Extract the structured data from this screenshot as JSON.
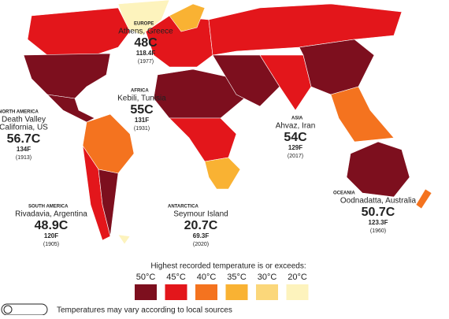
{
  "regions": [
    {
      "continent": "EUROPE",
      "place": [
        "Athens, Greece"
      ],
      "celsius": "48C",
      "fahrenheit": "118.4F",
      "year": "(1977)"
    },
    {
      "continent": "AFRICA",
      "place": [
        "Kebili, Tunisia"
      ],
      "celsius": "55C",
      "fahrenheit": "131F",
      "year": "(1931)"
    },
    {
      "continent": "NORTH AMERICA",
      "place": [
        "Death Valley",
        "California, US"
      ],
      "celsius": "56.7C",
      "fahrenheit": "134F",
      "year": "(1913)"
    },
    {
      "continent": "ASIA",
      "place": [
        "Ahvaz, Iran"
      ],
      "celsius": "54C",
      "fahrenheit": "129F",
      "year": "(2017)"
    },
    {
      "continent": "SOUTH AMERICA",
      "place": [
        "Rivadavia, Argentina"
      ],
      "celsius": "48.9C",
      "fahrenheit": "120F",
      "year": "(1905)"
    },
    {
      "continent": "ANTARCTICA",
      "place": [
        "Seymour Island"
      ],
      "celsius": "20.7C",
      "fahrenheit": "69.3F",
      "year": "(2020)"
    },
    {
      "continent": "OCEANIA",
      "place": [
        "Oodnadatta, Australia"
      ],
      "celsius": "50.7C",
      "fahrenheit": "123.3F",
      "year": "(1960)"
    }
  ],
  "legend": {
    "title": "Highest recorded temperature is or exceeds:",
    "items": [
      {
        "label": "50°C",
        "color": "#7d0f1e"
      },
      {
        "label": "45°C",
        "color": "#e3161b"
      },
      {
        "label": "40°C",
        "color": "#f4731f"
      },
      {
        "label": "35°C",
        "color": "#f9b233"
      },
      {
        "label": "30°C",
        "color": "#fbd77a"
      },
      {
        "label": "20°C",
        "color": "#fdf3bd"
      }
    ]
  },
  "footer": "Temperatures may vary according to local sources"
}
